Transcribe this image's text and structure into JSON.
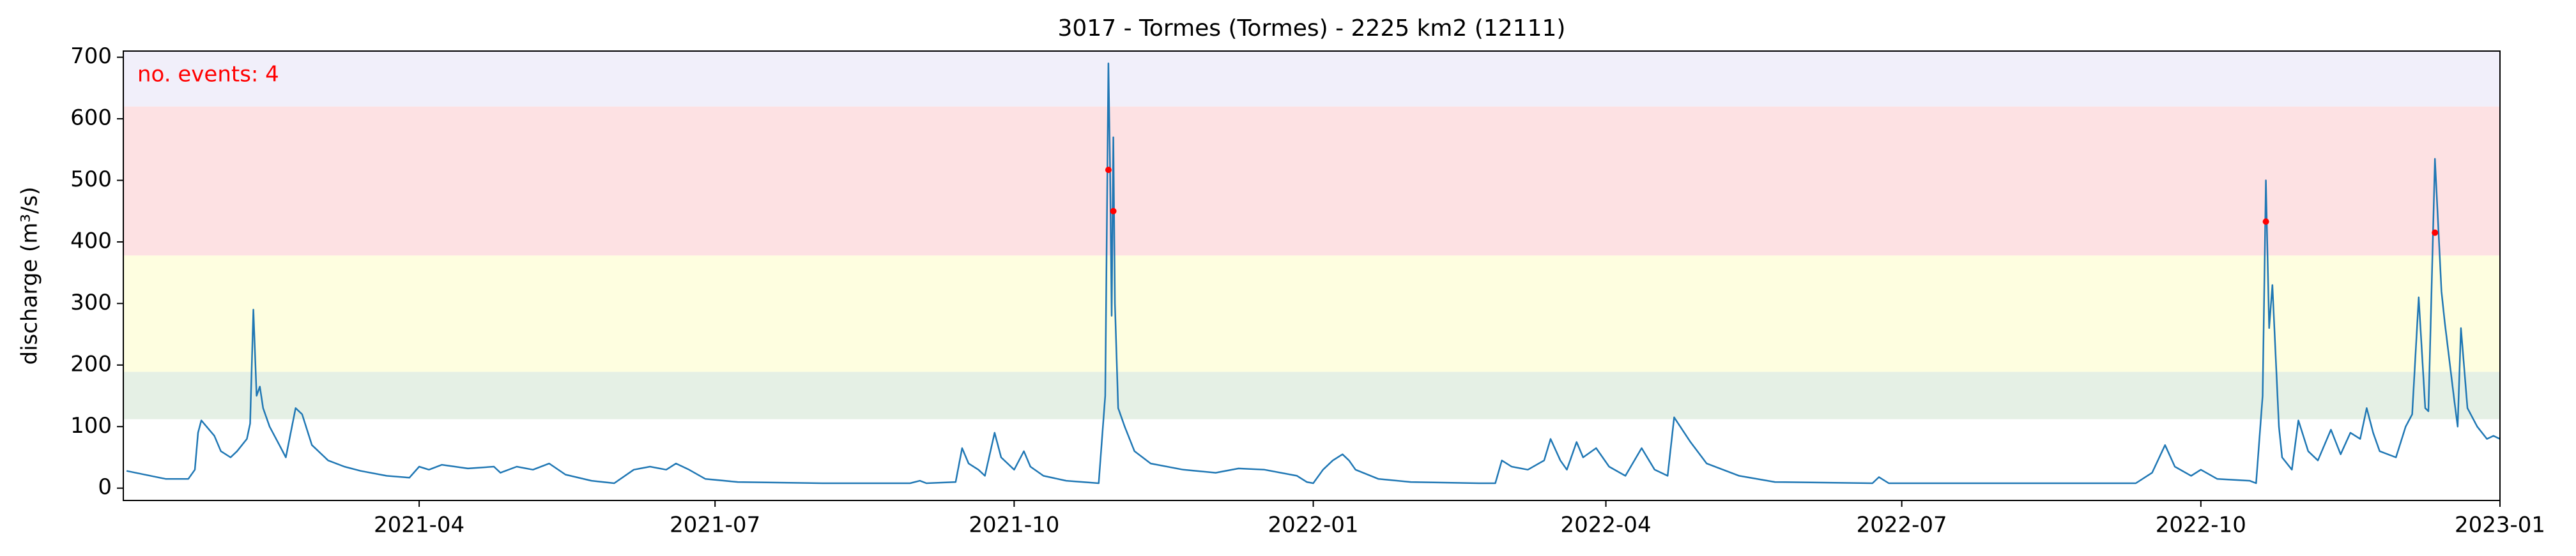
{
  "chart_data": {
    "type": "line",
    "title": "3017 - Tormes (Tormes) - 2225 km2 (12111)",
    "ylabel": "discharge (m³/s)",
    "annotation": {
      "text": "no. events: 4",
      "color": "#ff0000"
    },
    "xlim": [
      -1,
      730
    ],
    "xticks": [
      {
        "value": 90,
        "label": "2021-04"
      },
      {
        "value": 181,
        "label": "2021-07"
      },
      {
        "value": 273,
        "label": "2021-10"
      },
      {
        "value": 365,
        "label": "2022-01"
      },
      {
        "value": 455,
        "label": "2022-04"
      },
      {
        "value": 546,
        "label": "2022-07"
      },
      {
        "value": 638,
        "label": "2022-10"
      },
      {
        "value": 730,
        "label": "2023-01"
      }
    ],
    "ylim": [
      -20,
      710
    ],
    "yticks": [
      0,
      100,
      200,
      300,
      400,
      500,
      600,
      700
    ],
    "bands": [
      {
        "range": [
          112,
          189
        ],
        "color": "#e5f0e5"
      },
      {
        "range": [
          189,
          378
        ],
        "color": "#fefee0"
      },
      {
        "range": [
          378,
          620
        ],
        "color": "#fde1e3"
      },
      {
        "range": [
          620,
          710
        ],
        "color": "#f1effa"
      }
    ],
    "series": [
      {
        "color": "#1f77b4",
        "x": [
          0,
          12,
          19,
          21,
          22,
          23,
          27,
          29,
          32,
          34,
          37,
          38,
          39,
          40,
          41,
          42,
          44,
          47,
          49,
          52,
          54,
          57,
          62,
          67,
          72,
          80,
          87,
          90,
          93,
          97,
          105,
          113,
          115,
          120,
          125,
          130,
          135,
          143,
          150,
          156,
          161,
          166,
          169,
          173,
          178,
          188,
          214,
          241,
          244,
          246,
          255,
          257,
          259,
          262,
          264,
          267,
          269,
          273,
          276,
          278,
          282,
          289,
          299,
          301,
          302,
          302.5,
          303,
          303.5,
          304,
          305,
          307,
          310,
          315,
          325,
          335,
          342,
          350,
          360,
          363,
          365,
          368,
          371,
          374,
          376,
          378,
          385,
          395,
          416,
          421,
          423,
          426,
          431,
          436,
          438,
          441,
          443,
          446,
          448,
          452,
          456,
          461,
          466,
          470,
          474,
          476,
          481,
          486,
          496,
          507,
          537,
          539,
          542,
          618,
          623,
          627,
          630,
          635,
          638,
          643,
          653,
          655,
          657,
          658,
          659,
          660,
          662,
          663,
          666,
          668,
          671,
          674,
          678,
          681,
          684,
          687,
          689,
          691,
          693,
          698,
          701,
          703,
          705,
          707,
          708,
          710,
          712,
          713,
          716,
          717,
          718,
          720,
          723,
          726,
          728,
          730
        ],
        "values": [
          28,
          15,
          15,
          30,
          90,
          110,
          85,
          60,
          50,
          60,
          80,
          105,
          290,
          150,
          165,
          130,
          100,
          70,
          50,
          130,
          120,
          70,
          45,
          35,
          28,
          20,
          17,
          35,
          30,
          38,
          32,
          35,
          25,
          35,
          30,
          40,
          22,
          12,
          8,
          30,
          35,
          30,
          40,
          30,
          15,
          10,
          8,
          8,
          12,
          8,
          10,
          65,
          40,
          30,
          20,
          90,
          50,
          30,
          60,
          35,
          20,
          12,
          8,
          150,
          690,
          520,
          280,
          570,
          300,
          130,
          100,
          60,
          40,
          30,
          25,
          32,
          30,
          20,
          10,
          8,
          30,
          45,
          55,
          45,
          30,
          15,
          10,
          8,
          8,
          45,
          35,
          30,
          45,
          80,
          45,
          30,
          75,
          50,
          65,
          35,
          20,
          65,
          30,
          20,
          115,
          75,
          40,
          20,
          10,
          8,
          18,
          8,
          8,
          25,
          70,
          35,
          20,
          30,
          15,
          12,
          8,
          150,
          500,
          260,
          330,
          100,
          50,
          30,
          110,
          60,
          45,
          95,
          55,
          90,
          80,
          130,
          90,
          60,
          50,
          100,
          120,
          310,
          130,
          125,
          535,
          320,
          270,
          140,
          100,
          260,
          130,
          100,
          80,
          85,
          80
        ]
      }
    ],
    "events": {
      "color": "#ff0000",
      "x": [
        302,
        303.5,
        658,
        710
      ],
      "values": [
        517,
        450,
        433,
        415
      ]
    }
  }
}
